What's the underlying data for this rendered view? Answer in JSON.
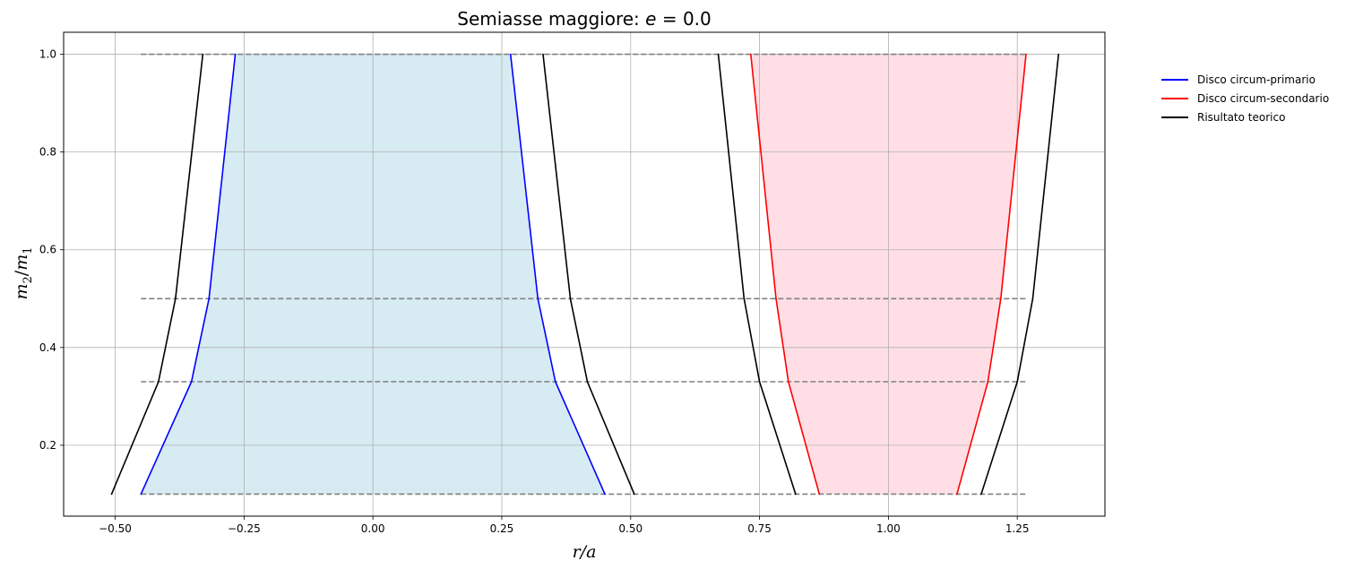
{
  "chart_data": {
    "type": "line",
    "title_prefix": "Semiasse maggiore: ",
    "title_var": "e",
    "title_suffix": " = 0.0",
    "xlabel": "r/a",
    "ylabel_var": "m",
    "ylabel_sub1": "2",
    "ylabel_slash": "/",
    "ylabel_sub2": "1",
    "xlim": [
      -0.6,
      1.42
    ],
    "ylim": [
      0.055,
      1.045
    ],
    "xticks": [
      -0.5,
      -0.25,
      0.0,
      0.25,
      0.5,
      0.75,
      1.0,
      1.25
    ],
    "xtick_labels": [
      "−0.50",
      "−0.25",
      "0.00",
      "0.25",
      "0.50",
      "0.75",
      "1.00",
      "1.25"
    ],
    "yticks": [
      0.2,
      0.4,
      0.6,
      0.8,
      1.0
    ],
    "ytick_labels": [
      "0.2",
      "0.4",
      "0.6",
      "0.8",
      "1.0"
    ],
    "grid": true,
    "legend_position": "outside-right",
    "mass_ratios": [
      0.1,
      0.33,
      0.5,
      1.0
    ],
    "hlines": {
      "y": [
        0.1,
        0.33,
        0.5,
        1.0
      ],
      "xmin": -0.45,
      "xmax": 1.27,
      "color": "#808080",
      "style": "dashed"
    },
    "fills": [
      {
        "name": "primary-fill",
        "color": "#add8e6",
        "opacity": 0.5,
        "left_series": 0,
        "right_series": 1
      },
      {
        "name": "secondary-fill",
        "color": "#ffc0cb",
        "opacity": 0.5,
        "left_series": 2,
        "right_series": 3
      }
    ],
    "series": [
      {
        "name": "Disco circum-primario",
        "color": "#0000ff",
        "legend": true,
        "x": [
          -0.45,
          -0.352,
          -0.318,
          -0.267
        ],
        "y": [
          0.1,
          0.33,
          0.5,
          1.0
        ]
      },
      {
        "color": "#0000ff",
        "legend": false,
        "x": [
          0.45,
          0.354,
          0.32,
          0.267
        ],
        "y": [
          0.1,
          0.33,
          0.5,
          1.0
        ]
      },
      {
        "name": "Disco circum-secondario",
        "color": "#ff0000",
        "legend": true,
        "x": [
          0.866,
          0.806,
          0.782,
          0.733
        ],
        "y": [
          0.1,
          0.33,
          0.5,
          1.0
        ]
      },
      {
        "color": "#ff0000",
        "legend": false,
        "x": [
          1.133,
          1.193,
          1.218,
          1.267
        ],
        "y": [
          0.1,
          0.33,
          0.5,
          1.0
        ]
      },
      {
        "name": "Risultato teorico",
        "color": "#000000",
        "legend": true,
        "x": [
          -0.507,
          -0.416,
          -0.383,
          -0.33
        ],
        "y": [
          0.1,
          0.33,
          0.5,
          1.0
        ]
      },
      {
        "color": "#000000",
        "legend": false,
        "x": [
          0.507,
          0.416,
          0.383,
          0.33
        ],
        "y": [
          0.1,
          0.33,
          0.5,
          1.0
        ]
      },
      {
        "color": "#000000",
        "legend": false,
        "x": [
          0.82,
          0.75,
          0.72,
          0.67
        ],
        "y": [
          0.1,
          0.33,
          0.5,
          1.0
        ]
      },
      {
        "color": "#000000",
        "legend": false,
        "x": [
          1.18,
          1.25,
          1.28,
          1.33
        ],
        "y": [
          0.1,
          0.33,
          0.5,
          1.0
        ]
      }
    ]
  }
}
